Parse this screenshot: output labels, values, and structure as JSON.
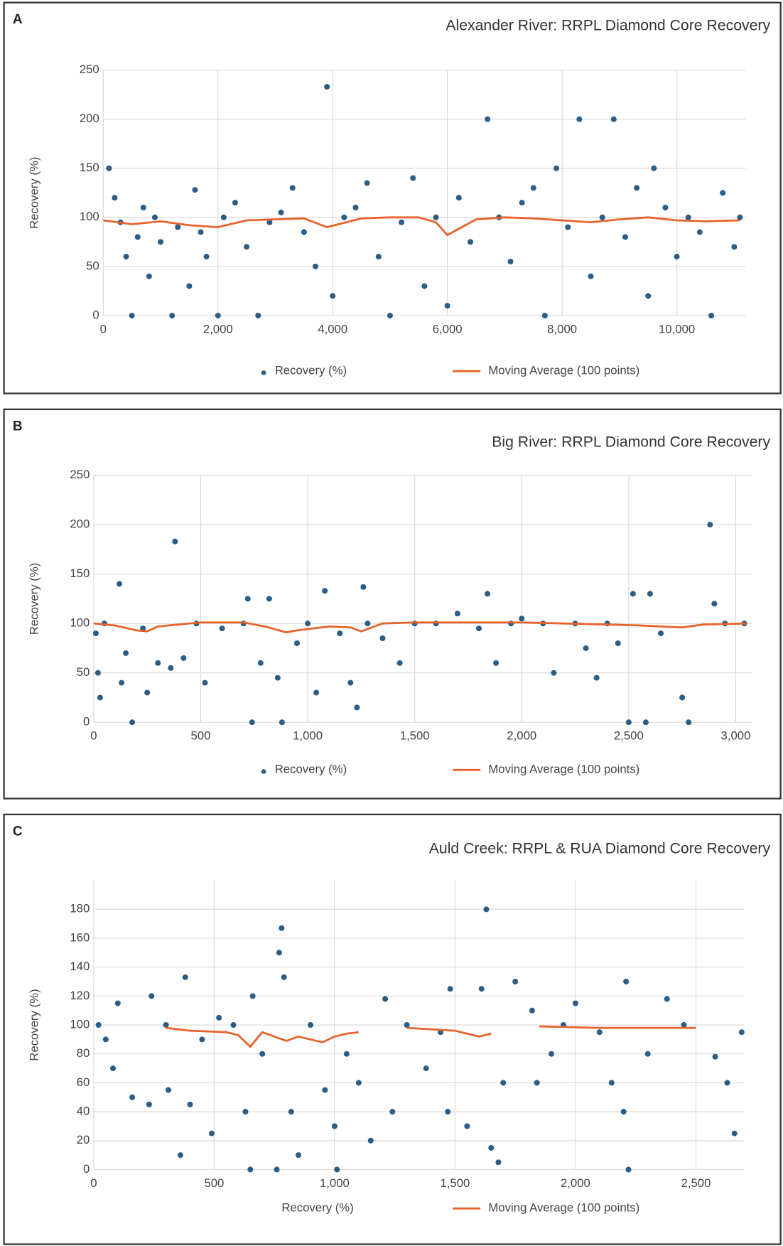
{
  "chart_data": [
    {
      "type": "scatter",
      "panel_label": "A",
      "title": "Alexander River: RRPL Diamond Core Recovery",
      "ylabel": "Recovery (%)",
      "xlim": [
        0,
        11200
      ],
      "ylim": [
        0,
        250
      ],
      "xticks": [
        0,
        {
          "value": 2000,
          "label": "2,000"
        },
        {
          "value": 4000,
          "label": "4,000"
        },
        {
          "value": 6000,
          "label": "6,000"
        },
        {
          "value": 8000,
          "label": "8,000"
        },
        {
          "value": 10000,
          "label": "10,000"
        }
      ],
      "yticks": [
        0,
        50,
        100,
        150,
        200,
        250
      ],
      "grid": true,
      "series": [
        {
          "name": "Recovery (%)",
          "color": "#2b5d85",
          "x": [
            100,
            200,
            300,
            400,
            500,
            600,
            700,
            800,
            900,
            1000,
            1200,
            1300,
            1500,
            1600,
            1700,
            1800,
            2000,
            2100,
            2300,
            2500,
            2700,
            2900,
            3100,
            3300,
            3500,
            3700,
            3900,
            4000,
            4200,
            4400,
            4600,
            4800,
            5000,
            5200,
            5400,
            5600,
            5800,
            6000,
            6200,
            6400,
            6700,
            6900,
            7100,
            7300,
            7500,
            7700,
            7900,
            8100,
            8300,
            8500,
            8700,
            8900,
            9100,
            9300,
            9500,
            9600,
            9800,
            10000,
            10200,
            10400,
            10600,
            10800,
            11000,
            11100
          ],
          "values": [
            150,
            120,
            95,
            60,
            0,
            80,
            110,
            40,
            100,
            75,
            0,
            90,
            30,
            128,
            85,
            60,
            0,
            100,
            115,
            70,
            0,
            95,
            105,
            130,
            85,
            50,
            233,
            20,
            100,
            110,
            135,
            60,
            0,
            95,
            140,
            30,
            100,
            10,
            120,
            75,
            200,
            100,
            55,
            115,
            130,
            0,
            150,
            90,
            200,
            40,
            100,
            200,
            80,
            130,
            20,
            150,
            110,
            60,
            100,
            85,
            0,
            125,
            70,
            100
          ]
        },
        {
          "name": "Moving Average (100 points)",
          "color": "#e8632b",
          "type": "line",
          "x": [
            0,
            500,
            1000,
            1500,
            2000,
            2500,
            3000,
            3500,
            3900,
            4500,
            5000,
            5500,
            5800,
            6000,
            6500,
            7000,
            7500,
            8000,
            8500,
            9000,
            9500,
            10000,
            10500,
            11100
          ],
          "values": [
            97,
            93,
            96,
            92,
            90,
            97,
            98,
            99,
            90,
            99,
            100,
            100,
            95,
            82,
            98,
            100,
            99,
            97,
            95,
            98,
            100,
            97,
            96,
            97
          ]
        }
      ]
    },
    {
      "type": "scatter",
      "panel_label": "B",
      "title": "Big River: RRPL Diamond Core Recovery",
      "ylabel": "Recovery (%)",
      "xlim": [
        0,
        3080
      ],
      "ylim": [
        0,
        250
      ],
      "xticks": [
        0,
        500,
        {
          "value": 1000,
          "label": "1,000"
        },
        {
          "value": 1500,
          "label": "1,500"
        },
        {
          "value": 2000,
          "label": "2,000"
        },
        {
          "value": 2500,
          "label": "2,500"
        },
        {
          "value": 3000,
          "label": "3,000"
        }
      ],
      "yticks": [
        0,
        50,
        100,
        150,
        200,
        250
      ],
      "grid": true,
      "series": [
        {
          "name": "Recovery (%)",
          "color": "#2b5d85",
          "x": [
            10,
            20,
            30,
            50,
            120,
            130,
            150,
            180,
            230,
            250,
            300,
            360,
            380,
            420,
            480,
            520,
            600,
            700,
            720,
            740,
            780,
            820,
            860,
            880,
            950,
            1000,
            1040,
            1080,
            1150,
            1200,
            1230,
            1260,
            1280,
            1350,
            1430,
            1500,
            1600,
            1700,
            1800,
            1840,
            1880,
            1950,
            2000,
            2100,
            2150,
            2250,
            2300,
            2350,
            2400,
            2450,
            2500,
            2520,
            2580,
            2600,
            2650,
            2750,
            2780,
            2880,
            2900,
            2950,
            3040
          ],
          "values": [
            90,
            50,
            25,
            100,
            140,
            40,
            70,
            0,
            95,
            30,
            60,
            55,
            183,
            65,
            100,
            40,
            95,
            100,
            125,
            0,
            60,
            125,
            45,
            0,
            80,
            100,
            30,
            133,
            90,
            40,
            15,
            137,
            100,
            85,
            60,
            100,
            100,
            110,
            95,
            130,
            60,
            100,
            105,
            100,
            50,
            100,
            75,
            45,
            100,
            80,
            0,
            130,
            0,
            130,
            90,
            25,
            0,
            200,
            120,
            100,
            100
          ]
        },
        {
          "name": "Moving Average (100 points)",
          "color": "#e8632b",
          "type": "line",
          "x": [
            0,
            100,
            200,
            250,
            300,
            500,
            700,
            800,
            900,
            950,
            1100,
            1200,
            1250,
            1350,
            1500,
            2000,
            2400,
            2550,
            2650,
            2750,
            2850,
            3050
          ],
          "values": [
            100,
            98,
            93,
            92,
            97,
            101,
            101,
            97,
            91,
            93,
            97,
            96,
            92,
            100,
            101,
            101,
            99,
            98,
            97,
            96,
            99,
            100
          ]
        }
      ]
    },
    {
      "type": "scatter",
      "panel_label": "C",
      "title": "Auld Creek: RRPL & RUA Diamond Core Recovery",
      "ylabel": "Recovery (%)",
      "xlabel": "Recovery (%)",
      "xlim": [
        0,
        2700
      ],
      "ylim": [
        0,
        200
      ],
      "xticks": [
        0,
        500,
        {
          "value": 1000,
          "label": "1,000"
        },
        {
          "value": 1500,
          "label": "1,500"
        },
        {
          "value": 2000,
          "label": "2,000"
        },
        {
          "value": 2500,
          "label": "2,500"
        }
      ],
      "yticks": [
        0,
        20,
        40,
        60,
        80,
        100,
        120,
        140,
        160,
        180
      ],
      "grid": true,
      "series": [
        {
          "color": "#2b5d85",
          "x": [
            20,
            50,
            80,
            100,
            160,
            230,
            240,
            300,
            310,
            360,
            380,
            400,
            450,
            490,
            520,
            580,
            630,
            650,
            660,
            700,
            760,
            770,
            780,
            790,
            820,
            850,
            900,
            960,
            1000,
            1010,
            1050,
            1100,
            1150,
            1210,
            1240,
            1300,
            1380,
            1440,
            1470,
            1480,
            1550,
            1610,
            1630,
            1650,
            1680,
            1700,
            1750,
            1820,
            1840,
            1900,
            1950,
            2000,
            2100,
            2150,
            2200,
            2210,
            2220,
            2300,
            2380,
            2450,
            2580,
            2630,
            2660,
            2690
          ],
          "values": [
            100,
            90,
            70,
            115,
            50,
            45,
            120,
            100,
            55,
            10,
            133,
            45,
            90,
            25,
            105,
            100,
            40,
            0,
            120,
            80,
            0,
            150,
            167,
            133,
            40,
            10,
            100,
            55,
            30,
            0,
            80,
            60,
            20,
            118,
            40,
            100,
            70,
            95,
            40,
            125,
            30,
            125,
            180,
            15,
            5,
            60,
            130,
            110,
            60,
            80,
            100,
            115,
            95,
            60,
            40,
            130,
            0,
            80,
            118,
            100,
            78,
            60,
            25,
            95
          ]
        },
        {
          "name": "Moving Average (100 points)",
          "color": "#e8632b",
          "type": "line",
          "x": [
            300,
            400,
            550,
            600,
            650,
            700,
            750,
            800,
            850,
            950,
            1000,
            1050,
            1100,
            1200,
            1300,
            1400,
            1500,
            1600,
            1650,
            1750,
            1850,
            2100,
            2500
          ],
          "values": [
            98,
            96,
            95,
            93,
            85,
            95,
            92,
            89,
            92,
            88,
            92,
            94,
            95,
            null,
            98,
            97,
            96,
            92,
            94,
            null,
            99,
            98,
            98
          ]
        }
      ]
    }
  ]
}
